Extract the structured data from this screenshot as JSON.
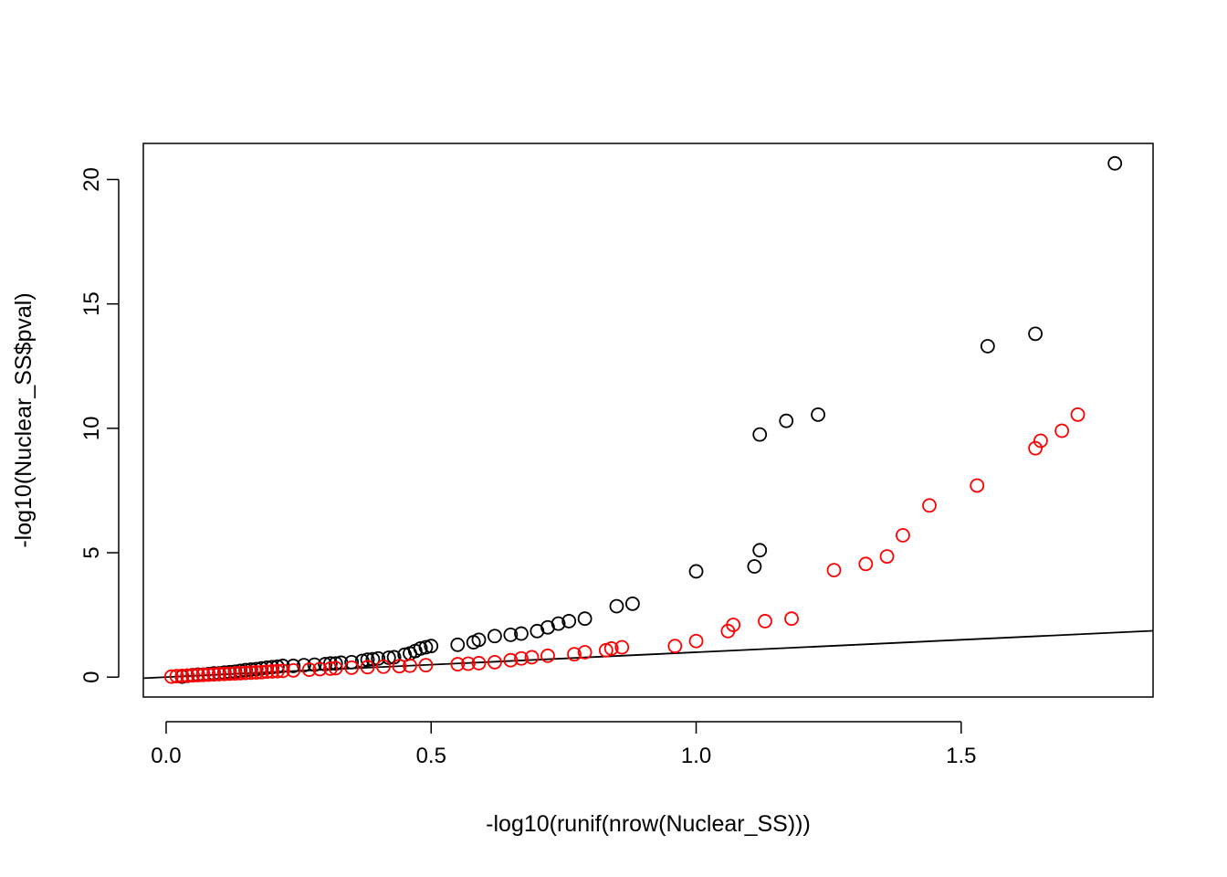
{
  "chart_data": {
    "type": "scatter",
    "title": "",
    "xlabel": "-log10(runif(nrow(Nuclear_SS)))",
    "ylabel": "-log10(Nuclear_SS$pval)",
    "xlim": [
      -0.043,
      1.862
    ],
    "ylim": [
      -0.8,
      21.45
    ],
    "x_ticks": [
      0.0,
      0.5,
      1.0,
      1.5
    ],
    "x_tick_labels": [
      "0.0",
      "0.5",
      "1.0",
      "1.5"
    ],
    "y_ticks": [
      0,
      5,
      10,
      15,
      20
    ],
    "y_tick_labels": [
      "0",
      "5",
      "10",
      "15",
      "20"
    ],
    "grid": false,
    "legend": "none",
    "colors": {
      "series1": "#000000",
      "series2": "#ff0000",
      "reference_line": "#000000"
    },
    "reference_line": {
      "intercept": 0.0,
      "slope": 1.0
    },
    "series": [
      {
        "color": "#000000",
        "marker": "open-circle",
        "points": [
          [
            0.03,
            0.02
          ],
          [
            0.04,
            0.05
          ],
          [
            0.05,
            0.08
          ],
          [
            0.06,
            0.1
          ],
          [
            0.07,
            0.1
          ],
          [
            0.08,
            0.12
          ],
          [
            0.09,
            0.15
          ],
          [
            0.1,
            0.15
          ],
          [
            0.11,
            0.18
          ],
          [
            0.12,
            0.2
          ],
          [
            0.13,
            0.22
          ],
          [
            0.14,
            0.25
          ],
          [
            0.15,
            0.28
          ],
          [
            0.16,
            0.3
          ],
          [
            0.17,
            0.32
          ],
          [
            0.18,
            0.35
          ],
          [
            0.19,
            0.38
          ],
          [
            0.2,
            0.4
          ],
          [
            0.21,
            0.42
          ],
          [
            0.22,
            0.45
          ],
          [
            0.24,
            0.45
          ],
          [
            0.26,
            0.48
          ],
          [
            0.28,
            0.5
          ],
          [
            0.3,
            0.52
          ],
          [
            0.31,
            0.55
          ],
          [
            0.32,
            0.55
          ],
          [
            0.33,
            0.58
          ],
          [
            0.35,
            0.6
          ],
          [
            0.37,
            0.65
          ],
          [
            0.38,
            0.7
          ],
          [
            0.39,
            0.72
          ],
          [
            0.4,
            0.75
          ],
          [
            0.42,
            0.78
          ],
          [
            0.43,
            0.8
          ],
          [
            0.45,
            0.9
          ],
          [
            0.46,
            0.95
          ],
          [
            0.47,
            1.05
          ],
          [
            0.48,
            1.15
          ],
          [
            0.49,
            1.2
          ],
          [
            0.5,
            1.25
          ],
          [
            0.55,
            1.3
          ],
          [
            0.58,
            1.4
          ],
          [
            0.59,
            1.5
          ],
          [
            0.62,
            1.65
          ],
          [
            0.65,
            1.7
          ],
          [
            0.67,
            1.75
          ],
          [
            0.7,
            1.85
          ],
          [
            0.72,
            2.0
          ],
          [
            0.74,
            2.15
          ],
          [
            0.76,
            2.25
          ],
          [
            0.79,
            2.35
          ],
          [
            0.85,
            2.85
          ],
          [
            0.88,
            2.95
          ],
          [
            1.0,
            4.25
          ],
          [
            1.11,
            4.45
          ],
          [
            1.12,
            5.1
          ],
          [
            1.12,
            9.75
          ],
          [
            1.17,
            10.3
          ],
          [
            1.23,
            10.55
          ],
          [
            1.55,
            13.3
          ],
          [
            1.64,
            13.8
          ],
          [
            1.79,
            20.65
          ]
        ]
      },
      {
        "color": "#ff0000",
        "marker": "open-circle",
        "points": [
          [
            0.01,
            0.02
          ],
          [
            0.02,
            0.04
          ],
          [
            0.03,
            0.05
          ],
          [
            0.04,
            0.06
          ],
          [
            0.05,
            0.07
          ],
          [
            0.06,
            0.08
          ],
          [
            0.07,
            0.09
          ],
          [
            0.08,
            0.1
          ],
          [
            0.09,
            0.11
          ],
          [
            0.1,
            0.12
          ],
          [
            0.11,
            0.13
          ],
          [
            0.12,
            0.14
          ],
          [
            0.13,
            0.15
          ],
          [
            0.14,
            0.16
          ],
          [
            0.15,
            0.17
          ],
          [
            0.16,
            0.18
          ],
          [
            0.17,
            0.19
          ],
          [
            0.18,
            0.2
          ],
          [
            0.19,
            0.22
          ],
          [
            0.2,
            0.23
          ],
          [
            0.21,
            0.24
          ],
          [
            0.22,
            0.25
          ],
          [
            0.24,
            0.27
          ],
          [
            0.27,
            0.3
          ],
          [
            0.29,
            0.32
          ],
          [
            0.31,
            0.34
          ],
          [
            0.32,
            0.36
          ],
          [
            0.35,
            0.38
          ],
          [
            0.38,
            0.4
          ],
          [
            0.41,
            0.42
          ],
          [
            0.44,
            0.44
          ],
          [
            0.46,
            0.46
          ],
          [
            0.49,
            0.48
          ],
          [
            0.55,
            0.52
          ],
          [
            0.57,
            0.54
          ],
          [
            0.59,
            0.56
          ],
          [
            0.62,
            0.6
          ],
          [
            0.65,
            0.68
          ],
          [
            0.67,
            0.75
          ],
          [
            0.69,
            0.8
          ],
          [
            0.72,
            0.86
          ],
          [
            0.77,
            0.92
          ],
          [
            0.79,
            1.0
          ],
          [
            0.83,
            1.08
          ],
          [
            0.84,
            1.15
          ],
          [
            0.86,
            1.2
          ],
          [
            0.96,
            1.25
          ],
          [
            1.0,
            1.45
          ],
          [
            1.06,
            1.85
          ],
          [
            1.07,
            2.1
          ],
          [
            1.13,
            2.25
          ],
          [
            1.18,
            2.35
          ],
          [
            1.26,
            4.3
          ],
          [
            1.32,
            4.55
          ],
          [
            1.36,
            4.85
          ],
          [
            1.39,
            5.7
          ],
          [
            1.44,
            6.9
          ],
          [
            1.53,
            7.7
          ],
          [
            1.64,
            9.2
          ],
          [
            1.65,
            9.5
          ],
          [
            1.69,
            9.9
          ],
          [
            1.72,
            10.55
          ]
        ]
      }
    ]
  }
}
